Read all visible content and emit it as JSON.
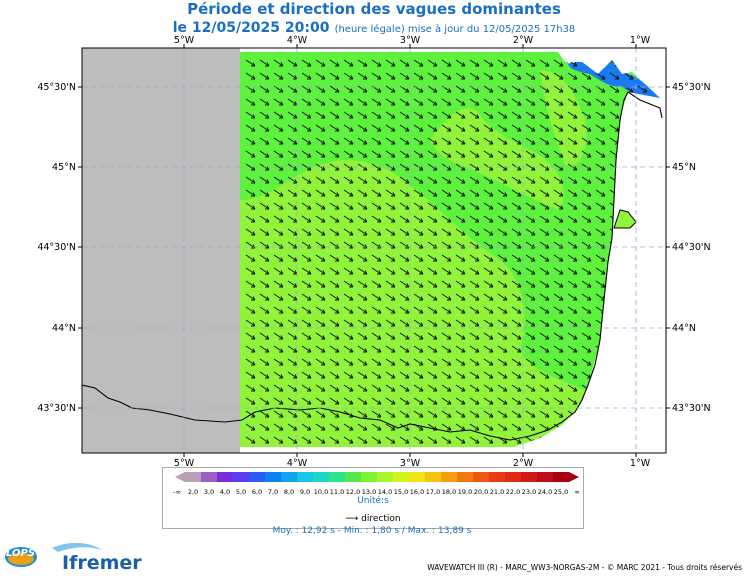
{
  "title": "Période et direction des vagues dominantes",
  "subtitle_date": "le 12/05/2025 20:00",
  "subtitle_note": "(heure légale) mise à jour du 12/05/2025 17h38",
  "lon_labels": [
    "5°W",
    "4°W",
    "3°W",
    "2°W",
    "1°W"
  ],
  "lat_labels": [
    "45°30'N",
    "45°N",
    "44°30'N",
    "44°N",
    "43°30'N"
  ],
  "legend": {
    "ticks": [
      "2,0",
      "3,0",
      "4,0",
      "5,0",
      "6,0",
      "7,0",
      "8,0",
      "9,0",
      "10,0",
      "11,0",
      "12,0",
      "13,0",
      "14,0",
      "15,0",
      "16,0",
      "17,0",
      "18,0",
      "19,0",
      "20,0",
      "21,0",
      "22,0",
      "23,0",
      "24,0",
      "25,0"
    ],
    "left_end": "-∞",
    "right_end": "∞",
    "unit": "Unité:s",
    "colors": [
      "#b7a0b8",
      "#9b5fc5",
      "#7a2be0",
      "#5a3cf2",
      "#2a5df5",
      "#0a82f2",
      "#11a3ef",
      "#18c4e8",
      "#19d9c6",
      "#2de38a",
      "#53e84a",
      "#7df232",
      "#a8f52a",
      "#d2f51f",
      "#f0e616",
      "#f5c412",
      "#f59e10",
      "#f2790f",
      "#ef5610",
      "#ea3c12",
      "#e02a14",
      "#d11a16",
      "#c00d18",
      "#a80010"
    ]
  },
  "direction_label": "direction",
  "stats": "Moy. : 12,92 s   -   Min. : 1,80 s / Max. : 13,89 s",
  "credit": "WAVEWATCH III (R) - MARC_WW3-NORGAS-2M - © MARC 2021 - Tous droits réservés",
  "logos": {
    "lops": "LOPS",
    "ifremer": "Ifremer"
  },
  "colors": {
    "land": "#bdbdbd",
    "sea_main": "#5df23d",
    "sea_outer": "#8ff43a",
    "sea_blue": "#1a7af2",
    "title": "#1a6fc2"
  }
}
